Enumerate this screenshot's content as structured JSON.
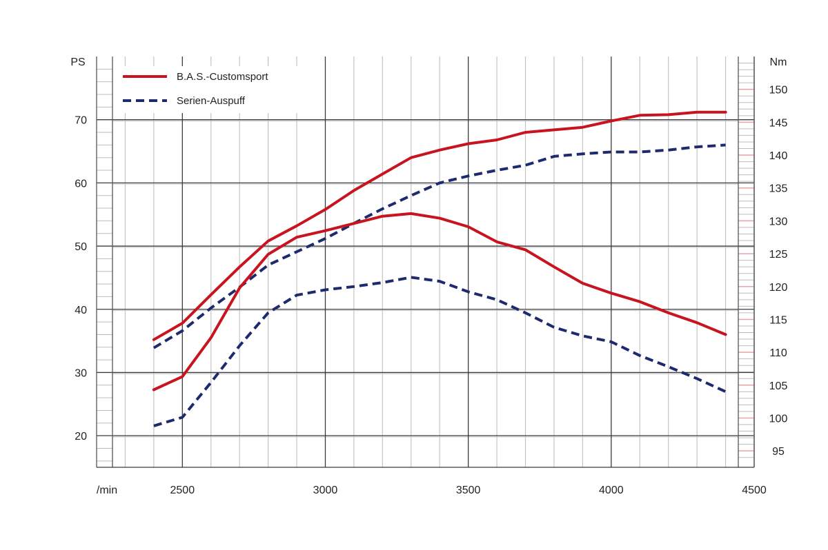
{
  "chart_data": {
    "type": "line",
    "xlabel": "/min",
    "left_axis_label": "PS",
    "right_axis_label": "Nm",
    "x_ticks": [
      2500,
      3000,
      3500,
      4000,
      4500
    ],
    "x_tick_labels": [
      "2500",
      "3000",
      "3500",
      "4000",
      "4500"
    ],
    "xlim": [
      2200,
      4500
    ],
    "y_left_ticks": [
      20,
      30,
      40,
      50,
      60,
      70
    ],
    "y_left_tick_labels": [
      "20",
      "30",
      "40",
      "50",
      "60",
      "70"
    ],
    "ylim_left": [
      15,
      80
    ],
    "y_right_ticks": [
      95,
      100,
      105,
      110,
      115,
      120,
      125,
      130,
      135,
      140,
      145,
      150
    ],
    "y_right_tick_labels": [
      "95",
      "100",
      "105",
      "110",
      "115",
      "120",
      "125",
      "130",
      "135",
      "140",
      "145",
      "150"
    ],
    "ylim_right": [
      92.5,
      155
    ],
    "legend": [
      {
        "name": "B.A.S.-Customsport",
        "color": "#c8141e",
        "style": "solid"
      },
      {
        "name": "Serien-Auspuff",
        "color": "#1e2a6e",
        "style": "dashed"
      }
    ],
    "x": [
      2400,
      2500,
      2600,
      2700,
      2800,
      2900,
      3000,
      3100,
      3200,
      3300,
      3400,
      3500,
      3600,
      3700,
      3800,
      3900,
      4000,
      4100,
      4200,
      4300,
      4400
    ],
    "series": [
      {
        "name": "B.A.S.-Customsport Leistung",
        "legend_group": "B.A.S.-Customsport",
        "axis": "left",
        "unit": "PS",
        "values": [
          35.2,
          37.8,
          42.3,
          46.7,
          50.8,
          53.2,
          55.8,
          58.8,
          61.4,
          64.0,
          65.2,
          66.2,
          66.8,
          68.0,
          68.4,
          68.8,
          69.8,
          70.7,
          70.8,
          71.2,
          71.2
        ]
      },
      {
        "name": "Serien-Auspuff Leistung",
        "legend_group": "Serien-Auspuff",
        "axis": "left",
        "unit": "PS",
        "values": [
          33.9,
          36.6,
          40.2,
          43.5,
          47.0,
          49.1,
          51.2,
          53.6,
          55.9,
          58.0,
          60.0,
          61.1,
          62.0,
          62.8,
          64.2,
          64.6,
          64.9,
          64.9,
          65.2,
          65.7,
          66.0
        ]
      },
      {
        "name": "B.A.S.-Customsport Drehmoment",
        "legend_group": "B.A.S.-Customsport",
        "axis": "right",
        "unit": "Nm",
        "values": [
          104.3,
          106.3,
          112.2,
          119.8,
          124.9,
          127.5,
          128.5,
          129.6,
          130.7,
          131.1,
          130.4,
          129.1,
          126.8,
          125.6,
          123.0,
          120.5,
          119.0,
          117.7,
          116.0,
          114.5,
          112.7
        ]
      },
      {
        "name": "Serien-Auspuff Drehmoment",
        "legend_group": "Serien-Auspuff",
        "axis": "right",
        "unit": "Nm",
        "values": [
          98.8,
          100.1,
          105.4,
          111.0,
          116.0,
          118.7,
          119.5,
          120.0,
          120.6,
          121.4,
          120.8,
          119.2,
          118.0,
          116.0,
          113.8,
          112.5,
          111.6,
          109.5,
          107.8,
          106.0,
          104.0
        ]
      }
    ]
  }
}
